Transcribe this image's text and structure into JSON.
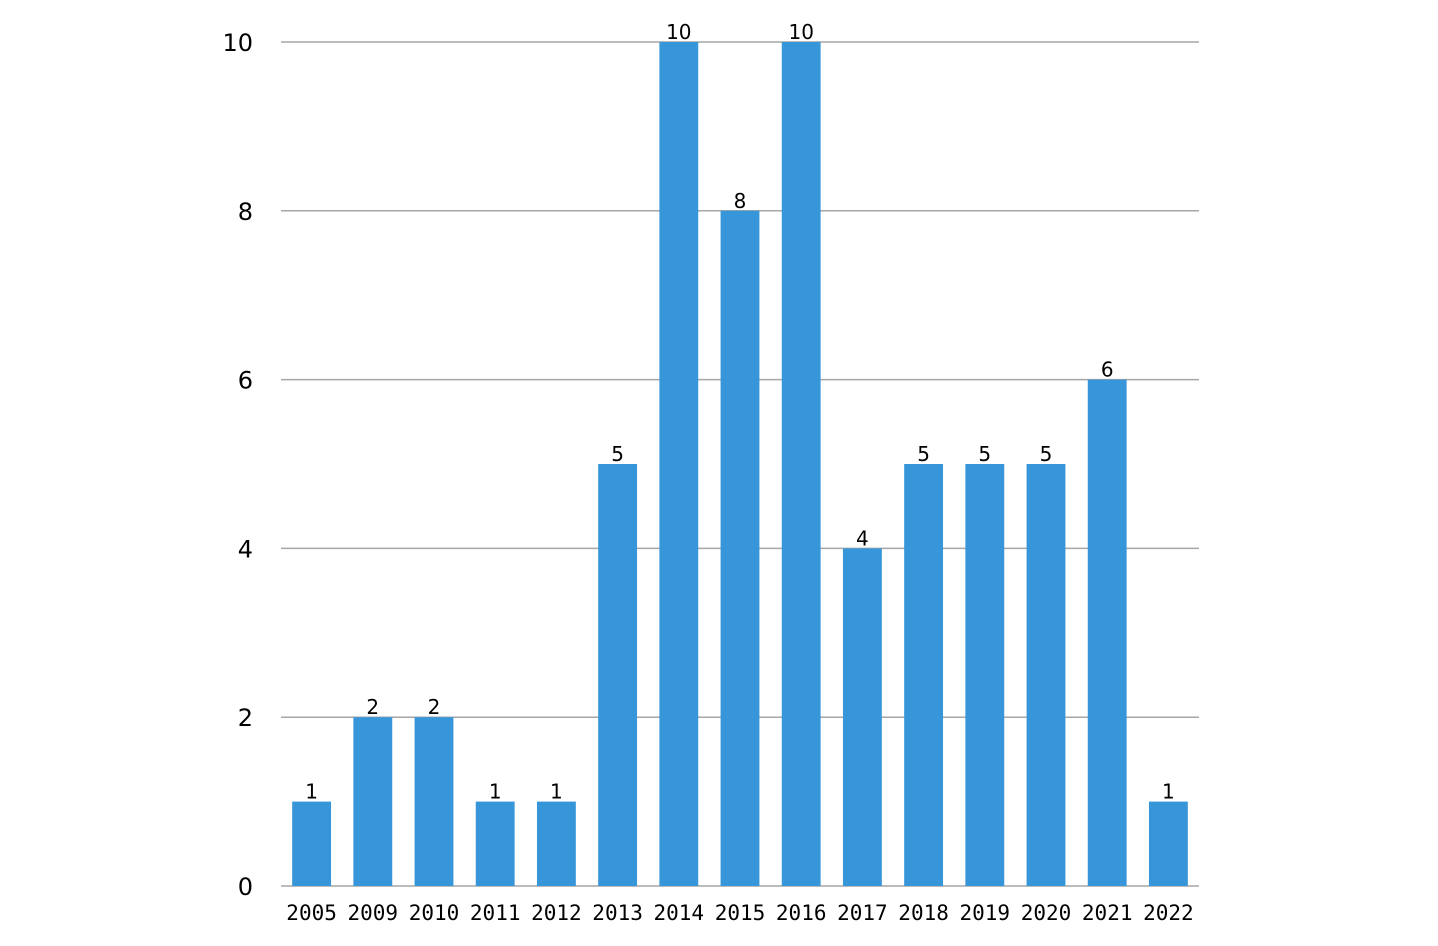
{
  "chart_data": {
    "type": "bar",
    "categories": [
      "2005",
      "2009",
      "2010",
      "2011",
      "2012",
      "2013",
      "2014",
      "2015",
      "2016",
      "2017",
      "2018",
      "2019",
      "2020",
      "2021",
      "2022"
    ],
    "values": [
      1,
      2,
      2,
      1,
      1,
      5,
      10,
      8,
      10,
      4,
      5,
      5,
      5,
      6,
      1
    ],
    "title": "",
    "xlabel": "",
    "ylabel": "",
    "ylim": [
      0,
      10
    ],
    "yticks": [
      0,
      2,
      4,
      6,
      8,
      10
    ],
    "grid": true,
    "data_labels": true,
    "legend": "none",
    "bar_color": "#3696d9",
    "grid_color": "#a6a6a6"
  }
}
